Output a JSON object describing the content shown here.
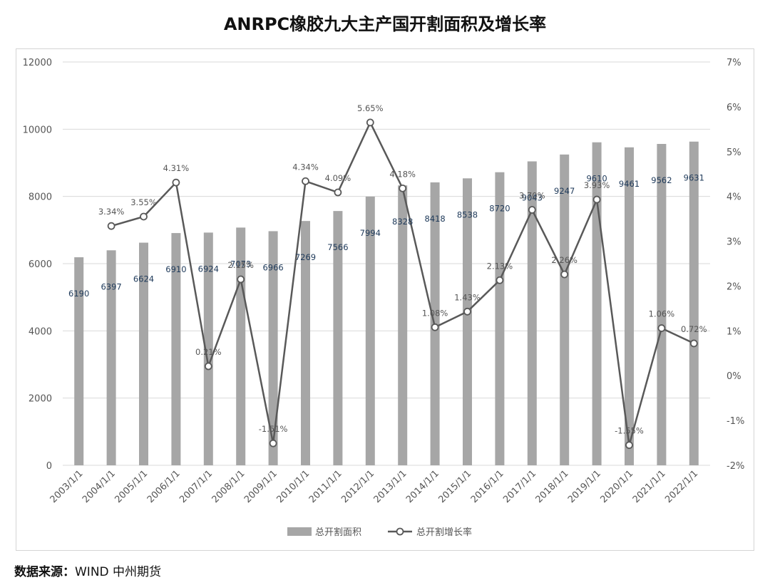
{
  "title": "ANRPC橡胶九大主产国开割面积及增长率",
  "source": {
    "label": "数据来源：",
    "text": "WIND  中州期货"
  },
  "colors": {
    "bar": "#a6a6a6",
    "line": "#595959",
    "marker_fill": "#ffffff",
    "grid": "#d9d9d9"
  },
  "chart_data": {
    "type": "bar",
    "title": "ANRPC橡胶九大主产国开割面积及增长率",
    "categories": [
      "2003/1/1",
      "2004/1/1",
      "2005/1/1",
      "2006/1/1",
      "2007/1/1",
      "2008/1/1",
      "2009/1/1",
      "2010/1/1",
      "2011/1/1",
      "2012/1/1",
      "2013/1/1",
      "2014/1/1",
      "2015/1/1",
      "2016/1/1",
      "2017/1/1",
      "2018/1/1",
      "2019/1/1",
      "2020/1/1",
      "2021/1/1",
      "2022/1/1"
    ],
    "series": [
      {
        "name": "总开割面积",
        "type": "bar",
        "axis": "left",
        "values": [
          6190,
          6397,
          6624,
          6910,
          6924,
          7073,
          6966,
          7269,
          7566,
          7994,
          8328,
          8418,
          8538,
          8720,
          9043,
          9247,
          9610,
          9461,
          9562,
          9631
        ]
      },
      {
        "name": "总开割增长率",
        "type": "line",
        "axis": "right",
        "values": [
          null,
          3.34,
          3.55,
          4.31,
          0.21,
          2.15,
          -1.51,
          4.34,
          4.09,
          5.65,
          4.18,
          1.08,
          1.43,
          2.13,
          3.7,
          2.26,
          3.93,
          -1.55,
          1.06,
          0.72
        ],
        "labels": [
          null,
          "3.34%",
          "3.55%",
          "4.31%",
          "0.21%",
          "2.15%",
          "-1.51%",
          "4.34%",
          "4.09%",
          "5.65%",
          "4.18%",
          "1.08%",
          "1.43%",
          "2.13%",
          "3.70%",
          "2.26%",
          "3.93%",
          "-1.55%",
          "1.06%",
          "0.72%"
        ]
      }
    ],
    "y_left": {
      "min": 0,
      "max": 12000,
      "ticks": [
        0,
        2000,
        4000,
        6000,
        8000,
        10000,
        12000
      ]
    },
    "y_right": {
      "min": -2,
      "max": 7,
      "ticks": [
        -2,
        -1,
        0,
        1,
        2,
        3,
        4,
        5,
        6,
        7
      ],
      "tick_labels": [
        "-2%",
        "-1%",
        "0%",
        "1%",
        "2%",
        "3%",
        "4%",
        "5%",
        "6%",
        "7%"
      ]
    },
    "xlabel": "",
    "ylabel": "",
    "grid": true,
    "legend": "bottom"
  }
}
